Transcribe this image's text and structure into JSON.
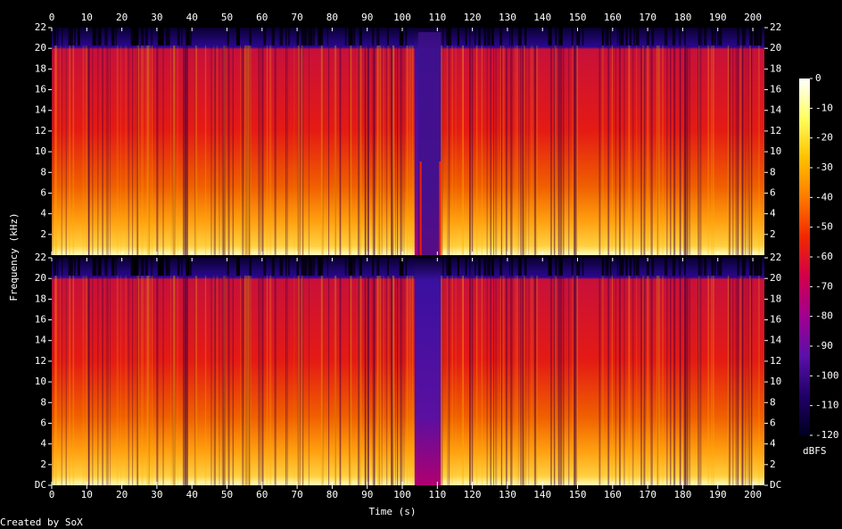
{
  "chart_data": {
    "type": "spectrogram",
    "xlabel": "Time (s)",
    "ylabel": "Frequency (kHz)",
    "xlim": [
      0,
      203.3
    ],
    "xticks": [
      0,
      10,
      20,
      30,
      40,
      50,
      60,
      70,
      80,
      90,
      100,
      110,
      120,
      130,
      140,
      150,
      160,
      170,
      180,
      190,
      200
    ],
    "channels": [
      {
        "ylim": [
          0,
          22
        ],
        "yticks": [
          2,
          4,
          6,
          8,
          10,
          12,
          14,
          16,
          18,
          20,
          22
        ]
      },
      {
        "ylim": [
          0,
          22
        ],
        "yticks": [
          {
            "value": 0,
            "label": "DC"
          },
          2,
          4,
          6,
          8,
          10,
          12,
          14,
          16,
          18,
          20,
          22
        ]
      }
    ],
    "colorbar": {
      "label": "dBFS",
      "lim": [
        0,
        -120
      ],
      "ticks": [
        0,
        -10,
        -20,
        -30,
        -40,
        -50,
        -60,
        -70,
        -80,
        -90,
        -100,
        -110,
        -120
      ],
      "colors": [
        "#ffffff",
        "#ffff60",
        "#ffc000",
        "#ff7a00",
        "#f02800",
        "#d0004a",
        "#a00090",
        "#5a10a8",
        "#200068",
        "#000020"
      ]
    },
    "credit": "Created by SoX"
  }
}
